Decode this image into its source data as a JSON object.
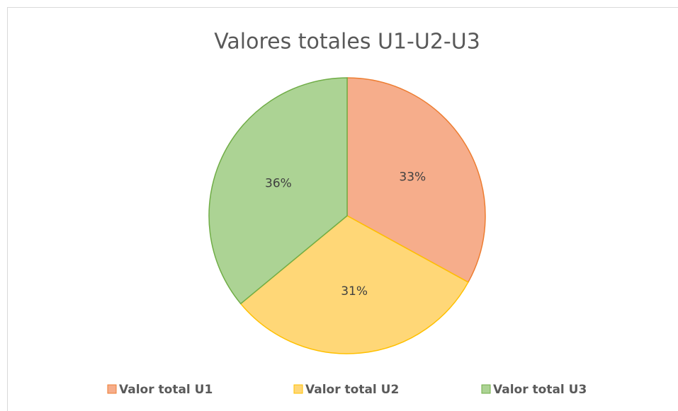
{
  "chart_data": {
    "type": "pie",
    "title": "Valores totales U1-U2-U3",
    "categories": [
      "Valor total U1",
      "Valor total U2",
      "Valor total U3"
    ],
    "values": [
      33,
      31,
      36
    ],
    "value_labels": [
      "33%",
      "31%",
      "36%"
    ],
    "colors": [
      "#f6ad8b",
      "#ffd777",
      "#acd394"
    ],
    "border_colors": [
      "#ed7d31",
      "#ffc000",
      "#70ad47"
    ],
    "legend": "bottom"
  }
}
